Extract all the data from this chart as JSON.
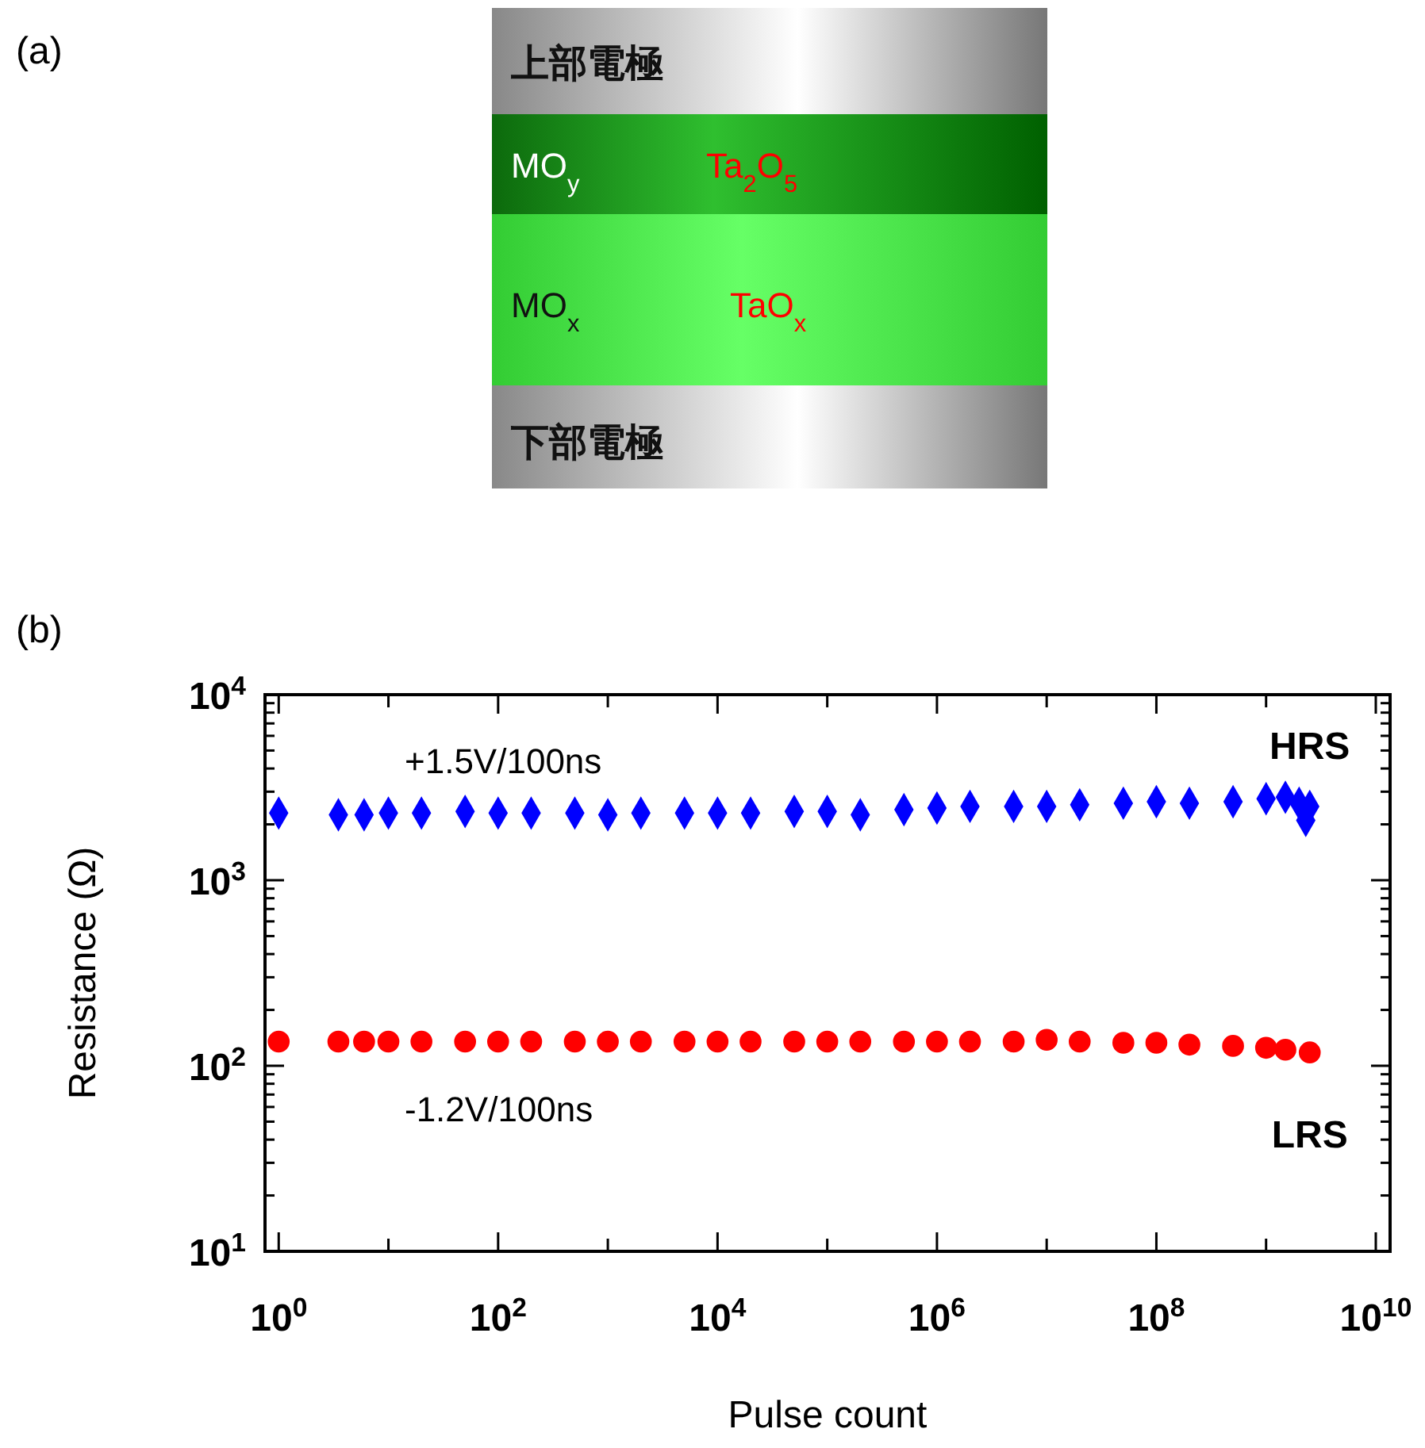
{
  "chart_data": [
    {
      "type": "other",
      "title": "(a)",
      "annotations": [
        "上部電極",
        "MO$_{y}$",
        "Ta$_{2}$O$_{5}$",
        "MO$_{x}$",
        "TaO$_{x}$",
        "下部電極"
      ]
    },
    {
      "type": "scatter",
      "title": "(b)",
      "xlabel": "Pulse count",
      "ylabel": "Resistance  (Ω)",
      "log": "xy",
      "grid": false,
      "xlim": [
        0.75,
        13500000000
      ],
      "ylim": [
        10,
        10000
      ],
      "xticks": [
        {
          "value": 1,
          "label": "10$^{0}$"
        },
        {
          "value": 10,
          "label": null
        },
        {
          "value": 100,
          "label": "10$^{2}$"
        },
        {
          "value": 1000,
          "label": null
        },
        {
          "value": 10000,
          "label": "10$^{4}$"
        },
        {
          "value": 100000,
          "label": null
        },
        {
          "value": 1000000,
          "label": "10$^{6}$"
        },
        {
          "value": 10000000,
          "label": null
        },
        {
          "value": 100000000,
          "label": "10$^{8}$"
        },
        {
          "value": 1000000000,
          "label": null
        },
        {
          "value": 10000000000,
          "label": "10$^{10}$"
        }
      ],
      "yticks": [
        {
          "value": 10,
          "label": "10$^{1}$"
        },
        {
          "value": 20,
          "label": null
        },
        {
          "value": 30,
          "label": null
        },
        {
          "value": 40,
          "label": null
        },
        {
          "value": 50,
          "label": null
        },
        {
          "value": 60,
          "label": null
        },
        {
          "value": 70,
          "label": null
        },
        {
          "value": 80,
          "label": null
        },
        {
          "value": 90,
          "label": null
        },
        {
          "value": 100,
          "label": "10$^{2}$"
        },
        {
          "value": 200,
          "label": null
        },
        {
          "value": 300,
          "label": null
        },
        {
          "value": 400,
          "label": null
        },
        {
          "value": 500,
          "label": null
        },
        {
          "value": 600,
          "label": null
        },
        {
          "value": 700,
          "label": null
        },
        {
          "value": 800,
          "label": null
        },
        {
          "value": 900,
          "label": null
        },
        {
          "value": 1000,
          "label": "10$^{3}$"
        },
        {
          "value": 2000,
          "label": null
        },
        {
          "value": 3000,
          "label": null
        },
        {
          "value": 4000,
          "label": null
        },
        {
          "value": 5000,
          "label": null
        },
        {
          "value": 6000,
          "label": null
        },
        {
          "value": 7000,
          "label": null
        },
        {
          "value": 8000,
          "label": null
        },
        {
          "value": 9000,
          "label": null
        },
        {
          "value": 10000,
          "label": "10$^{4}$"
        }
      ],
      "annotations": [
        "+1.5V/100ns",
        "-1.2V/100ns"
      ],
      "series": [
        {
          "name": "HRS",
          "color": "#0000ff",
          "marker": "diamond",
          "x": [
            1,
            3.5,
            6,
            10,
            20,
            50,
            100,
            200,
            500,
            1000,
            2000,
            5000,
            10000,
            20000,
            50000,
            100000,
            200000,
            500000,
            1000000,
            2000000,
            5000000,
            10000000,
            20000000,
            50000000,
            100000000,
            200000000,
            500000000,
            1000000000,
            1500000000,
            2000000000,
            2300000000,
            2500000000
          ],
          "values": [
            2300,
            2250,
            2250,
            2300,
            2300,
            2350,
            2300,
            2300,
            2300,
            2250,
            2300,
            2300,
            2300,
            2300,
            2350,
            2350,
            2250,
            2400,
            2450,
            2500,
            2500,
            2500,
            2550,
            2600,
            2650,
            2600,
            2650,
            2750,
            2800,
            2600,
            2100,
            2500
          ]
        },
        {
          "name": "LRS",
          "color": "#ff0000",
          "marker": "circle",
          "x": [
            1,
            3.5,
            6,
            10,
            20,
            50,
            100,
            200,
            500,
            1000,
            2000,
            5000,
            10000,
            20000,
            50000,
            100000,
            200000,
            500000,
            1000000,
            2000000,
            5000000,
            10000000,
            20000000,
            50000000,
            100000000,
            200000000,
            500000000,
            1000000000,
            1500000000,
            2500000000
          ],
          "values": [
            135,
            135,
            135,
            135,
            135,
            135,
            135,
            135,
            135,
            135,
            135,
            135,
            135,
            135,
            135,
            135,
            135,
            135,
            135,
            135,
            135,
            138,
            135,
            133,
            133,
            130,
            128,
            125,
            122,
            118
          ]
        }
      ]
    }
  ]
}
